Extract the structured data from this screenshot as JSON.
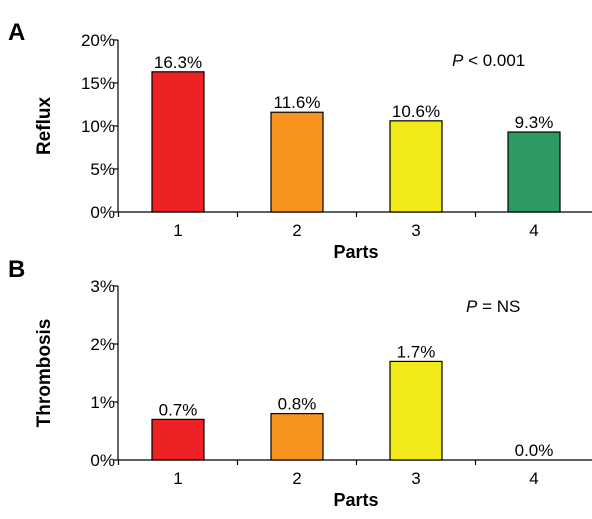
{
  "chart_data": [
    {
      "type": "bar",
      "panel_label": "A",
      "categories": [
        "1",
        "2",
        "3",
        "4"
      ],
      "values": [
        16.3,
        11.6,
        10.6,
        9.3
      ],
      "data_labels": [
        "16.3%",
        "11.6%",
        "10.6%",
        "9.3%"
      ],
      "bar_colors": [
        "#ee2124",
        "#f7941d",
        "#f2ea1b",
        "#2e9a63"
      ],
      "xlabel": "Parts",
      "ylabel": "Reflux",
      "ylim": [
        0,
        20
      ],
      "yticks": [
        0,
        5,
        10,
        15,
        20
      ],
      "ytick_labels": [
        "0%",
        "5%",
        "10%",
        "15%",
        "20%"
      ],
      "annotation": {
        "italic": "P",
        "text": " < 0.001"
      },
      "grid": false,
      "legend": "none"
    },
    {
      "type": "bar",
      "panel_label": "B",
      "categories": [
        "1",
        "2",
        "3",
        "4"
      ],
      "values": [
        0.7,
        0.8,
        1.7,
        0.0
      ],
      "data_labels": [
        "0.7%",
        "0.8%",
        "1.7%",
        "0.0%"
      ],
      "bar_colors": [
        "#ee2124",
        "#f7941d",
        "#f2ea1b",
        "#2e9a63"
      ],
      "xlabel": "Parts",
      "ylabel": "Thrombosis",
      "ylim": [
        0,
        3
      ],
      "yticks": [
        0,
        1,
        2,
        3
      ],
      "ytick_labels": [
        "0%",
        "1%",
        "2%",
        "3%"
      ],
      "annotation": {
        "italic": "P",
        "text": " = NS"
      },
      "grid": false,
      "legend": "none"
    }
  ]
}
